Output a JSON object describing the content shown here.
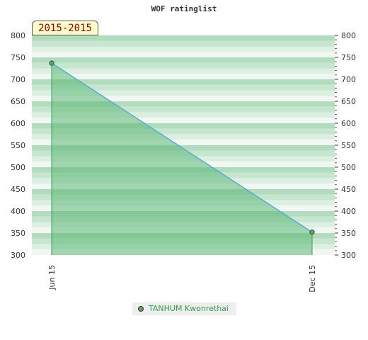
{
  "chart_data": {
    "type": "area",
    "title": "WOF ratinglist",
    "period_label": "2015-2015",
    "x": [
      "Jun 15",
      "Dec 15"
    ],
    "series": [
      {
        "name": "TANHUM Kwonrethai",
        "values": [
          737,
          352
        ]
      }
    ],
    "ylim": [
      300,
      800
    ],
    "y_ticks": [
      300,
      350,
      400,
      450,
      500,
      550,
      600,
      650,
      700,
      750,
      800
    ],
    "y_axis": "both left and right",
    "grid": "horizontal green bands",
    "legend_position": "bottom-center",
    "colors": {
      "line": "#5aaad8",
      "fill": "#5cb878",
      "marker": "#5aa66a",
      "legend_text": "#33a04a",
      "title": "#333333",
      "badge_text": "#990000"
    }
  }
}
